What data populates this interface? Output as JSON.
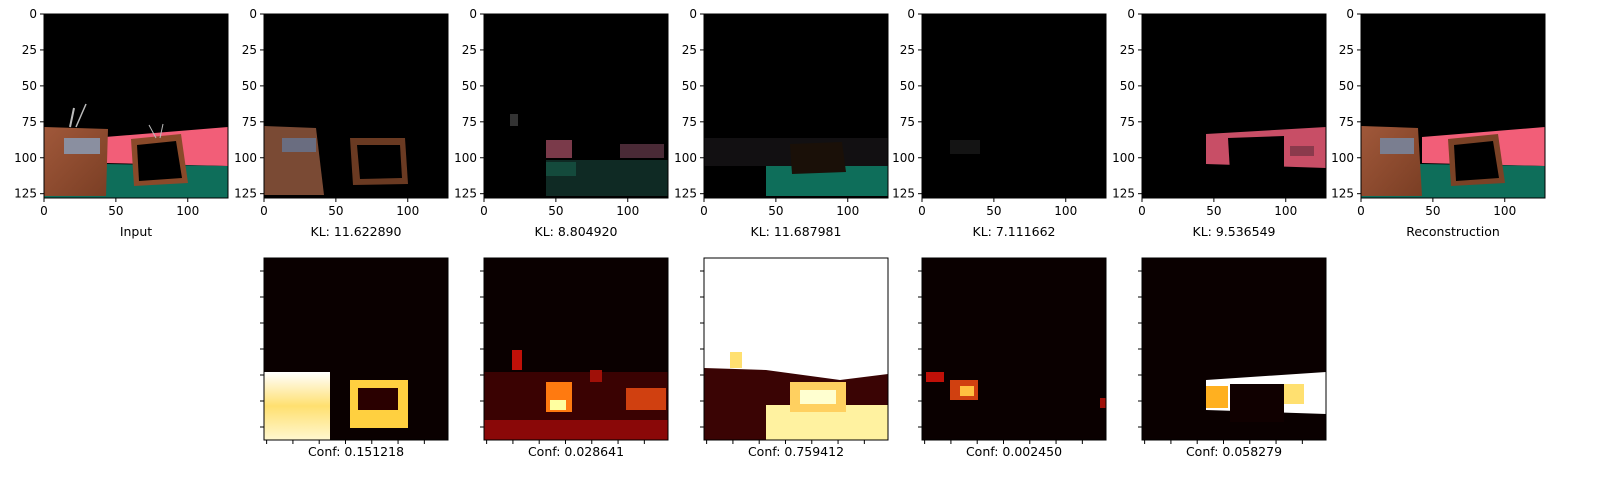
{
  "top_row": [
    {
      "id": "input",
      "label": "Input"
    },
    {
      "id": "slot1",
      "label": "KL: 11.622890"
    },
    {
      "id": "slot2",
      "label": "KL: 8.804920"
    },
    {
      "id": "slot3",
      "label": "KL: 11.687981"
    },
    {
      "id": "slot4",
      "label": "KL: 7.111662"
    },
    {
      "id": "slot5",
      "label": "KL: 9.536549"
    },
    {
      "id": "recon",
      "label": "Reconstruction"
    }
  ],
  "bottom_row": [
    {
      "id": "mask1",
      "label": "Conf: 0.151218"
    },
    {
      "id": "mask2",
      "label": "Conf: 0.028641"
    },
    {
      "id": "mask3",
      "label": "Conf: 0.759412"
    },
    {
      "id": "mask4",
      "label": "Conf: 0.002450"
    },
    {
      "id": "mask5",
      "label": "Conf: 0.058279"
    }
  ],
  "axis": {
    "range": [
      0,
      128
    ],
    "y_ticks": [
      "0",
      "25",
      "50",
      "75",
      "100",
      "125"
    ],
    "x_ticks": [
      "0",
      "50",
      "100"
    ]
  },
  "colors": {
    "floor": "#0e6e5a",
    "wall": "#f25e78",
    "box": "#8a4a2a",
    "heat_low": "#000000",
    "heat_high": "#ffffff"
  }
}
